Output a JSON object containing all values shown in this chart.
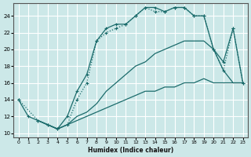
{
  "xlabel": "Humidex (Indice chaleur)",
  "background_color": "#cce8e8",
  "grid_color": "#ffffff",
  "line_color": "#1a6b6b",
  "xlim": [
    -0.5,
    23.5
  ],
  "ylim": [
    9.5,
    25.5
  ],
  "xticks": [
    0,
    1,
    2,
    3,
    4,
    5,
    6,
    7,
    8,
    9,
    10,
    11,
    12,
    13,
    14,
    15,
    16,
    17,
    18,
    19,
    20,
    21,
    22,
    23
  ],
  "yticks": [
    10,
    12,
    14,
    16,
    18,
    20,
    22,
    24
  ],
  "line1_x": [
    0,
    1,
    2,
    3,
    4,
    5,
    6,
    7,
    8,
    9,
    10,
    11,
    12,
    13,
    14,
    15,
    16,
    17,
    18,
    19,
    20,
    21,
    22,
    23
  ],
  "line1_y": [
    14,
    12,
    11.5,
    11,
    10.5,
    12,
    15,
    17,
    21,
    22.5,
    23,
    23,
    24,
    25,
    25,
    24.5,
    25,
    25,
    24,
    24,
    20,
    18.5,
    22.5,
    16
  ],
  "line2_x": [
    0,
    2,
    3,
    4,
    5,
    6,
    7,
    8,
    9,
    10,
    11,
    12,
    13,
    14,
    15,
    16,
    17,
    18,
    19,
    20,
    21,
    22,
    23
  ],
  "line2_y": [
    14,
    11.5,
    11,
    10.5,
    11,
    14,
    16,
    21,
    22,
    22.5,
    23,
    24,
    25,
    24.5,
    24.5,
    25,
    25,
    24,
    24,
    20,
    17.5,
    22.5,
    16
  ],
  "line3_x": [
    2,
    3,
    4,
    5,
    6,
    7,
    8,
    9,
    10,
    11,
    12,
    13,
    14,
    15,
    16,
    17,
    18,
    19,
    20,
    21,
    22,
    23
  ],
  "line3_y": [
    11.5,
    11,
    10.5,
    11,
    12,
    12.5,
    13.5,
    15,
    16,
    17,
    18,
    18.5,
    19.5,
    20,
    20.5,
    21,
    21,
    21,
    20,
    17.5,
    16,
    16
  ],
  "line4_x": [
    2,
    3,
    4,
    5,
    6,
    7,
    8,
    9,
    10,
    11,
    12,
    13,
    14,
    15,
    16,
    17,
    18,
    19,
    20,
    21,
    22,
    23
  ],
  "line4_y": [
    11.5,
    11,
    10.5,
    11,
    11.5,
    12,
    12.5,
    13,
    13.5,
    14,
    14.5,
    15,
    15,
    15.5,
    15.5,
    16,
    16,
    16.5,
    16,
    16,
    16,
    16
  ]
}
